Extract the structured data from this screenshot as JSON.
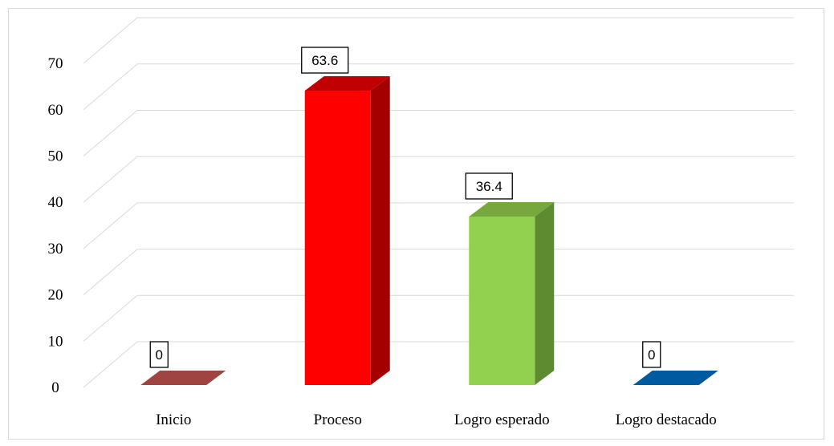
{
  "chart_data": {
    "type": "bar",
    "categories": [
      "Inicio",
      "Proceso",
      "Logro esperado",
      "Logro destacado"
    ],
    "values": [
      0,
      63.6,
      36.4,
      0
    ],
    "data_labels": [
      "0",
      "63.6",
      "36.4",
      "0"
    ],
    "ylim": [
      0,
      70
    ],
    "y_ticks": [
      "0",
      "10",
      "20",
      "30",
      "40",
      "50",
      "60",
      "70"
    ],
    "grid": true,
    "three_d": true,
    "legend": "none",
    "colors": {
      "Inicio": {
        "front": "#953735",
        "side": "#632523",
        "top": "#a04442"
      },
      "Proceso": {
        "front": "#ff0000",
        "side": "#a50000",
        "top": "#c00000"
      },
      "Logro esperado": {
        "front": "#92d050",
        "side": "#5e8a30",
        "top": "#76a83e"
      },
      "Logro destacado": {
        "front": "#0070c0",
        "side": "#004a80",
        "top": "#005a9e"
      }
    }
  }
}
